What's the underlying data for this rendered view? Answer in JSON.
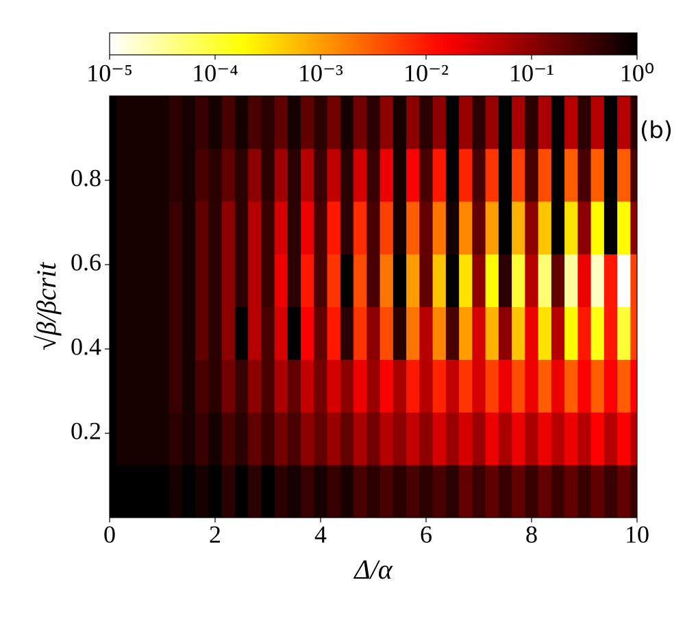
{
  "chart_data": {
    "type": "heatmap",
    "xlabel": "Δ/α",
    "ylabel": "√β/βcrit",
    "annotation": "(b)",
    "colormap": "hot_r",
    "x": [
      0,
      0.25,
      0.5,
      0.75,
      1,
      1.25,
      1.5,
      1.75,
      2,
      2.25,
      2.5,
      2.75,
      3,
      3.25,
      3.5,
      3.75,
      4,
      4.25,
      4.5,
      4.75,
      5,
      5.25,
      5.5,
      5.75,
      6,
      6.25,
      6.5,
      6.75,
      7,
      7.25,
      7.5,
      7.75,
      8,
      8.25,
      8.5,
      8.75,
      9,
      9.25,
      9.5,
      9.75,
      10
    ],
    "y": [
      0.0625,
      0.1875,
      0.3125,
      0.4375,
      0.5625,
      0.6875,
      0.8125,
      0.9375
    ],
    "z": [
      [
        1,
        1,
        1,
        1,
        1,
        0.7,
        1,
        0.7,
        1,
        0.5,
        1,
        0.5,
        1,
        0.5,
        0.7,
        0.4,
        0.7,
        0.4,
        0.7,
        0.3,
        0.5,
        0.3,
        0.5,
        0.3,
        0.5,
        0.3,
        0.5,
        0.2,
        0.4,
        0.2,
        0.4,
        0.2,
        0.4,
        0.2,
        0.4,
        0.2,
        0.4,
        0.2,
        0.4,
        0.2,
        0.4
      ],
      [
        1,
        0.7,
        0.7,
        0.7,
        0.7,
        0.5,
        0.7,
        0.4,
        0.7,
        0.3,
        0.5,
        0.2,
        0.4,
        0.15,
        0.3,
        0.1,
        0.2,
        0.08,
        0.2,
        0.06,
        0.15,
        0.05,
        0.1,
        0.04,
        0.1,
        0.03,
        0.08,
        0.03,
        0.08,
        0.02,
        0.06,
        0.02,
        0.06,
        0.02,
        0.05,
        0.02,
        0.05,
        0.015,
        0.05,
        0.015,
        0.05
      ],
      [
        1,
        0.7,
        0.7,
        0.7,
        0.7,
        0.4,
        0.7,
        0.3,
        0.5,
        0.15,
        0.4,
        0.1,
        0.3,
        0.06,
        0.2,
        0.04,
        0.15,
        0.03,
        0.1,
        0.02,
        0.08,
        0.015,
        0.06,
        0.01,
        0.05,
        0.008,
        0.04,
        0.006,
        0.03,
        0.005,
        0.02,
        0.004,
        0.02,
        0.003,
        0.02,
        0.003,
        0.015,
        0.003,
        0.015,
        0.003,
        0.015
      ],
      [
        1,
        0.7,
        0.7,
        0.7,
        0.7,
        0.4,
        0.7,
        0.2,
        0.5,
        0.1,
        1,
        0.05,
        0.3,
        0.03,
        1,
        0.015,
        0.2,
        0.01,
        0.5,
        0.006,
        0.1,
        0.004,
        0.5,
        0.002,
        0.05,
        0.0015,
        0.3,
        0.001,
        0.03,
        0.0007,
        0.1,
        0.0005,
        0.02,
        0.0003,
        0.05,
        0.0002,
        0.01,
        0.00015,
        0.01,
        0.0001,
        0.005
      ],
      [
        1,
        0.7,
        0.7,
        0.7,
        0.7,
        0.4,
        0.7,
        0.2,
        0.5,
        0.1,
        0.5,
        0.05,
        0.4,
        0.02,
        0.5,
        0.01,
        0.3,
        0.006,
        1,
        0.004,
        0.3,
        0.002,
        1,
        0.001,
        0.2,
        0.0005,
        1,
        0.0003,
        0.1,
        0.0002,
        0.5,
        0.0001,
        0.05,
        5e-05,
        0.2,
        3e-05,
        0.02,
        2e-05,
        0.01,
        1e-05,
        0.005
      ],
      [
        1,
        0.7,
        0.7,
        0.7,
        0.7,
        0.4,
        0.7,
        0.2,
        0.5,
        0.1,
        0.5,
        0.05,
        0.4,
        0.03,
        0.5,
        0.02,
        0.3,
        0.01,
        0.5,
        0.007,
        0.3,
        0.005,
        0.7,
        0.003,
        0.2,
        0.002,
        0.7,
        0.0015,
        0.2,
        0.001,
        1,
        0.0007,
        0.1,
        0.0005,
        1,
        0.0003,
        0.1,
        0.0002,
        1,
        0.0002,
        0.1
      ],
      [
        1,
        0.7,
        0.7,
        0.7,
        0.7,
        0.5,
        0.7,
        0.3,
        0.5,
        0.2,
        0.5,
        0.1,
        0.5,
        0.07,
        0.5,
        0.05,
        0.4,
        0.04,
        0.5,
        0.03,
        0.4,
        0.02,
        0.7,
        0.015,
        0.3,
        0.01,
        1,
        0.008,
        0.3,
        0.006,
        1,
        0.005,
        0.3,
        0.004,
        1,
        0.003,
        0.3,
        0.003,
        1,
        0.003,
        0.3
      ],
      [
        1,
        0.7,
        0.7,
        0.7,
        0.7,
        0.5,
        0.7,
        0.4,
        0.7,
        0.3,
        0.7,
        0.3,
        0.5,
        0.2,
        0.7,
        0.2,
        0.5,
        0.15,
        0.7,
        0.15,
        0.5,
        0.1,
        0.7,
        0.1,
        0.5,
        0.1,
        1,
        0.08,
        0.5,
        0.08,
        1,
        0.06,
        0.5,
        0.06,
        1,
        0.05,
        0.5,
        0.05,
        1,
        0.05,
        0.5
      ]
    ],
    "xlim": [
      0,
      10
    ],
    "xticks": [
      0,
      2,
      4,
      6,
      8,
      10
    ],
    "ylim": [
      0,
      1
    ],
    "yticks": [
      0.2,
      0.4,
      0.6,
      0.8
    ],
    "clim": [
      1e-05,
      1
    ],
    "clog": true,
    "cticks": [
      {
        "value": 1e-05,
        "label": "10⁻⁵"
      },
      {
        "value": 0.0001,
        "label": "10⁻⁴"
      },
      {
        "value": 0.001,
        "label": "10⁻³"
      },
      {
        "value": 0.01,
        "label": "10⁻²"
      },
      {
        "value": 0.1,
        "label": "10⁻¹"
      },
      {
        "value": 1,
        "label": "10⁰"
      }
    ]
  }
}
